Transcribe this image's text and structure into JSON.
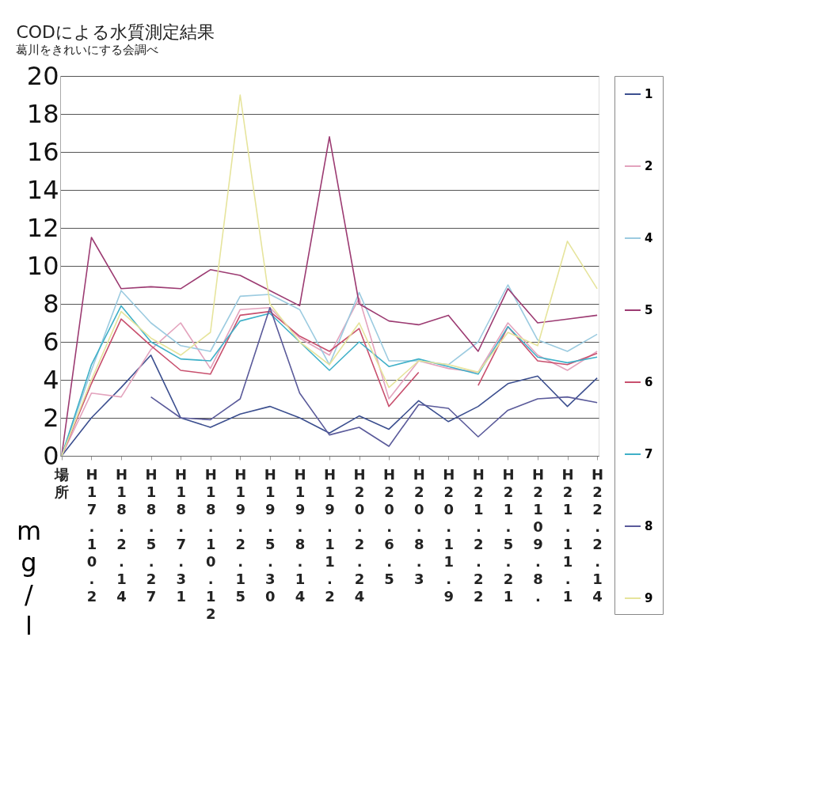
{
  "chart_data": {
    "type": "line",
    "title": "CODによる水質測定結果",
    "subtitle": "葛川をきれいにする会調べ",
    "ylabel": "mg/l",
    "categories": [
      "場所",
      "H17.10.2",
      "H18.2.14",
      "H18.5.27",
      "H18.7.31",
      "H18.10.12",
      "H19.2.15",
      "H19.5.30",
      "H19.8.14",
      "H19.11.2",
      "H20.2.24",
      "H20.6.5",
      "H20.8.3",
      "H20.11.9",
      "H21.2.22",
      "H21.5.21",
      "H2109.8.",
      "H21.11.1",
      "H22.2.14"
    ],
    "series": [
      {
        "name": "1",
        "color": "#3c4f8f",
        "values": [
          0,
          2.0,
          3.6,
          5.3,
          2.0,
          1.5,
          2.2,
          2.6,
          2.0,
          1.2,
          2.1,
          1.4,
          2.9,
          1.8,
          2.6,
          3.8,
          4.2,
          2.6,
          4.1
        ]
      },
      {
        "name": "2",
        "color": "#e3a3bd",
        "values": [
          0,
          3.3,
          3.1,
          5.6,
          7.0,
          4.6,
          7.7,
          7.8,
          6.2,
          5.3,
          8.3,
          3.0,
          5.0,
          4.6,
          4.4,
          7.0,
          5.3,
          4.5,
          5.5
        ]
      },
      {
        "name": "4",
        "color": "#9ccbe0",
        "values": [
          0,
          4.5,
          8.7,
          7.0,
          5.8,
          5.5,
          8.4,
          8.5,
          7.7,
          4.8,
          8.6,
          5.0,
          5.0,
          4.8,
          6.0,
          9.0,
          6.1,
          5.5,
          6.4
        ]
      },
      {
        "name": "5",
        "color": "#9c3b72",
        "values": [
          0,
          11.5,
          8.8,
          8.9,
          8.8,
          9.8,
          9.5,
          8.7,
          7.9,
          16.8,
          8.0,
          7.1,
          6.9,
          7.4,
          5.5,
          8.8,
          7.0,
          7.2,
          7.4
        ]
      },
      {
        "name": "6",
        "color": "#c8506e",
        "values": [
          0,
          3.8,
          7.2,
          5.8,
          4.5,
          4.3,
          7.4,
          7.6,
          6.3,
          5.5,
          6.7,
          2.6,
          4.4,
          null,
          3.7,
          6.8,
          5.0,
          4.8,
          5.4
        ]
      },
      {
        "name": "7",
        "color": "#3fb0c8",
        "values": [
          0,
          4.8,
          7.9,
          6.0,
          5.1,
          5.0,
          7.1,
          7.5,
          6.0,
          4.5,
          6.0,
          4.7,
          5.1,
          4.7,
          4.3,
          6.8,
          5.2,
          4.9,
          5.2
        ]
      },
      {
        "name": "8",
        "color": "#5a5a9a",
        "values": [
          null,
          null,
          null,
          3.1,
          2.0,
          1.9,
          3.0,
          7.8,
          3.3,
          1.1,
          1.5,
          0.5,
          2.7,
          2.5,
          1.0,
          2.4,
          3.0,
          3.1,
          2.8
        ]
      },
      {
        "name": "9",
        "color": "#e6e49c",
        "values": [
          0,
          4.0,
          7.6,
          6.2,
          5.3,
          6.5,
          19.0,
          8.0,
          6.0,
          4.8,
          7.0,
          3.6,
          5.0,
          4.8,
          4.4,
          6.5,
          5.8,
          11.3,
          8.8
        ]
      }
    ],
    "ylim": [
      0,
      20
    ],
    "yticks": [
      0,
      2,
      4,
      6,
      8,
      10,
      12,
      14,
      16,
      18,
      20
    ],
    "grid": "y",
    "legend": "right",
    "marker": "none",
    "line_style": "solid"
  }
}
